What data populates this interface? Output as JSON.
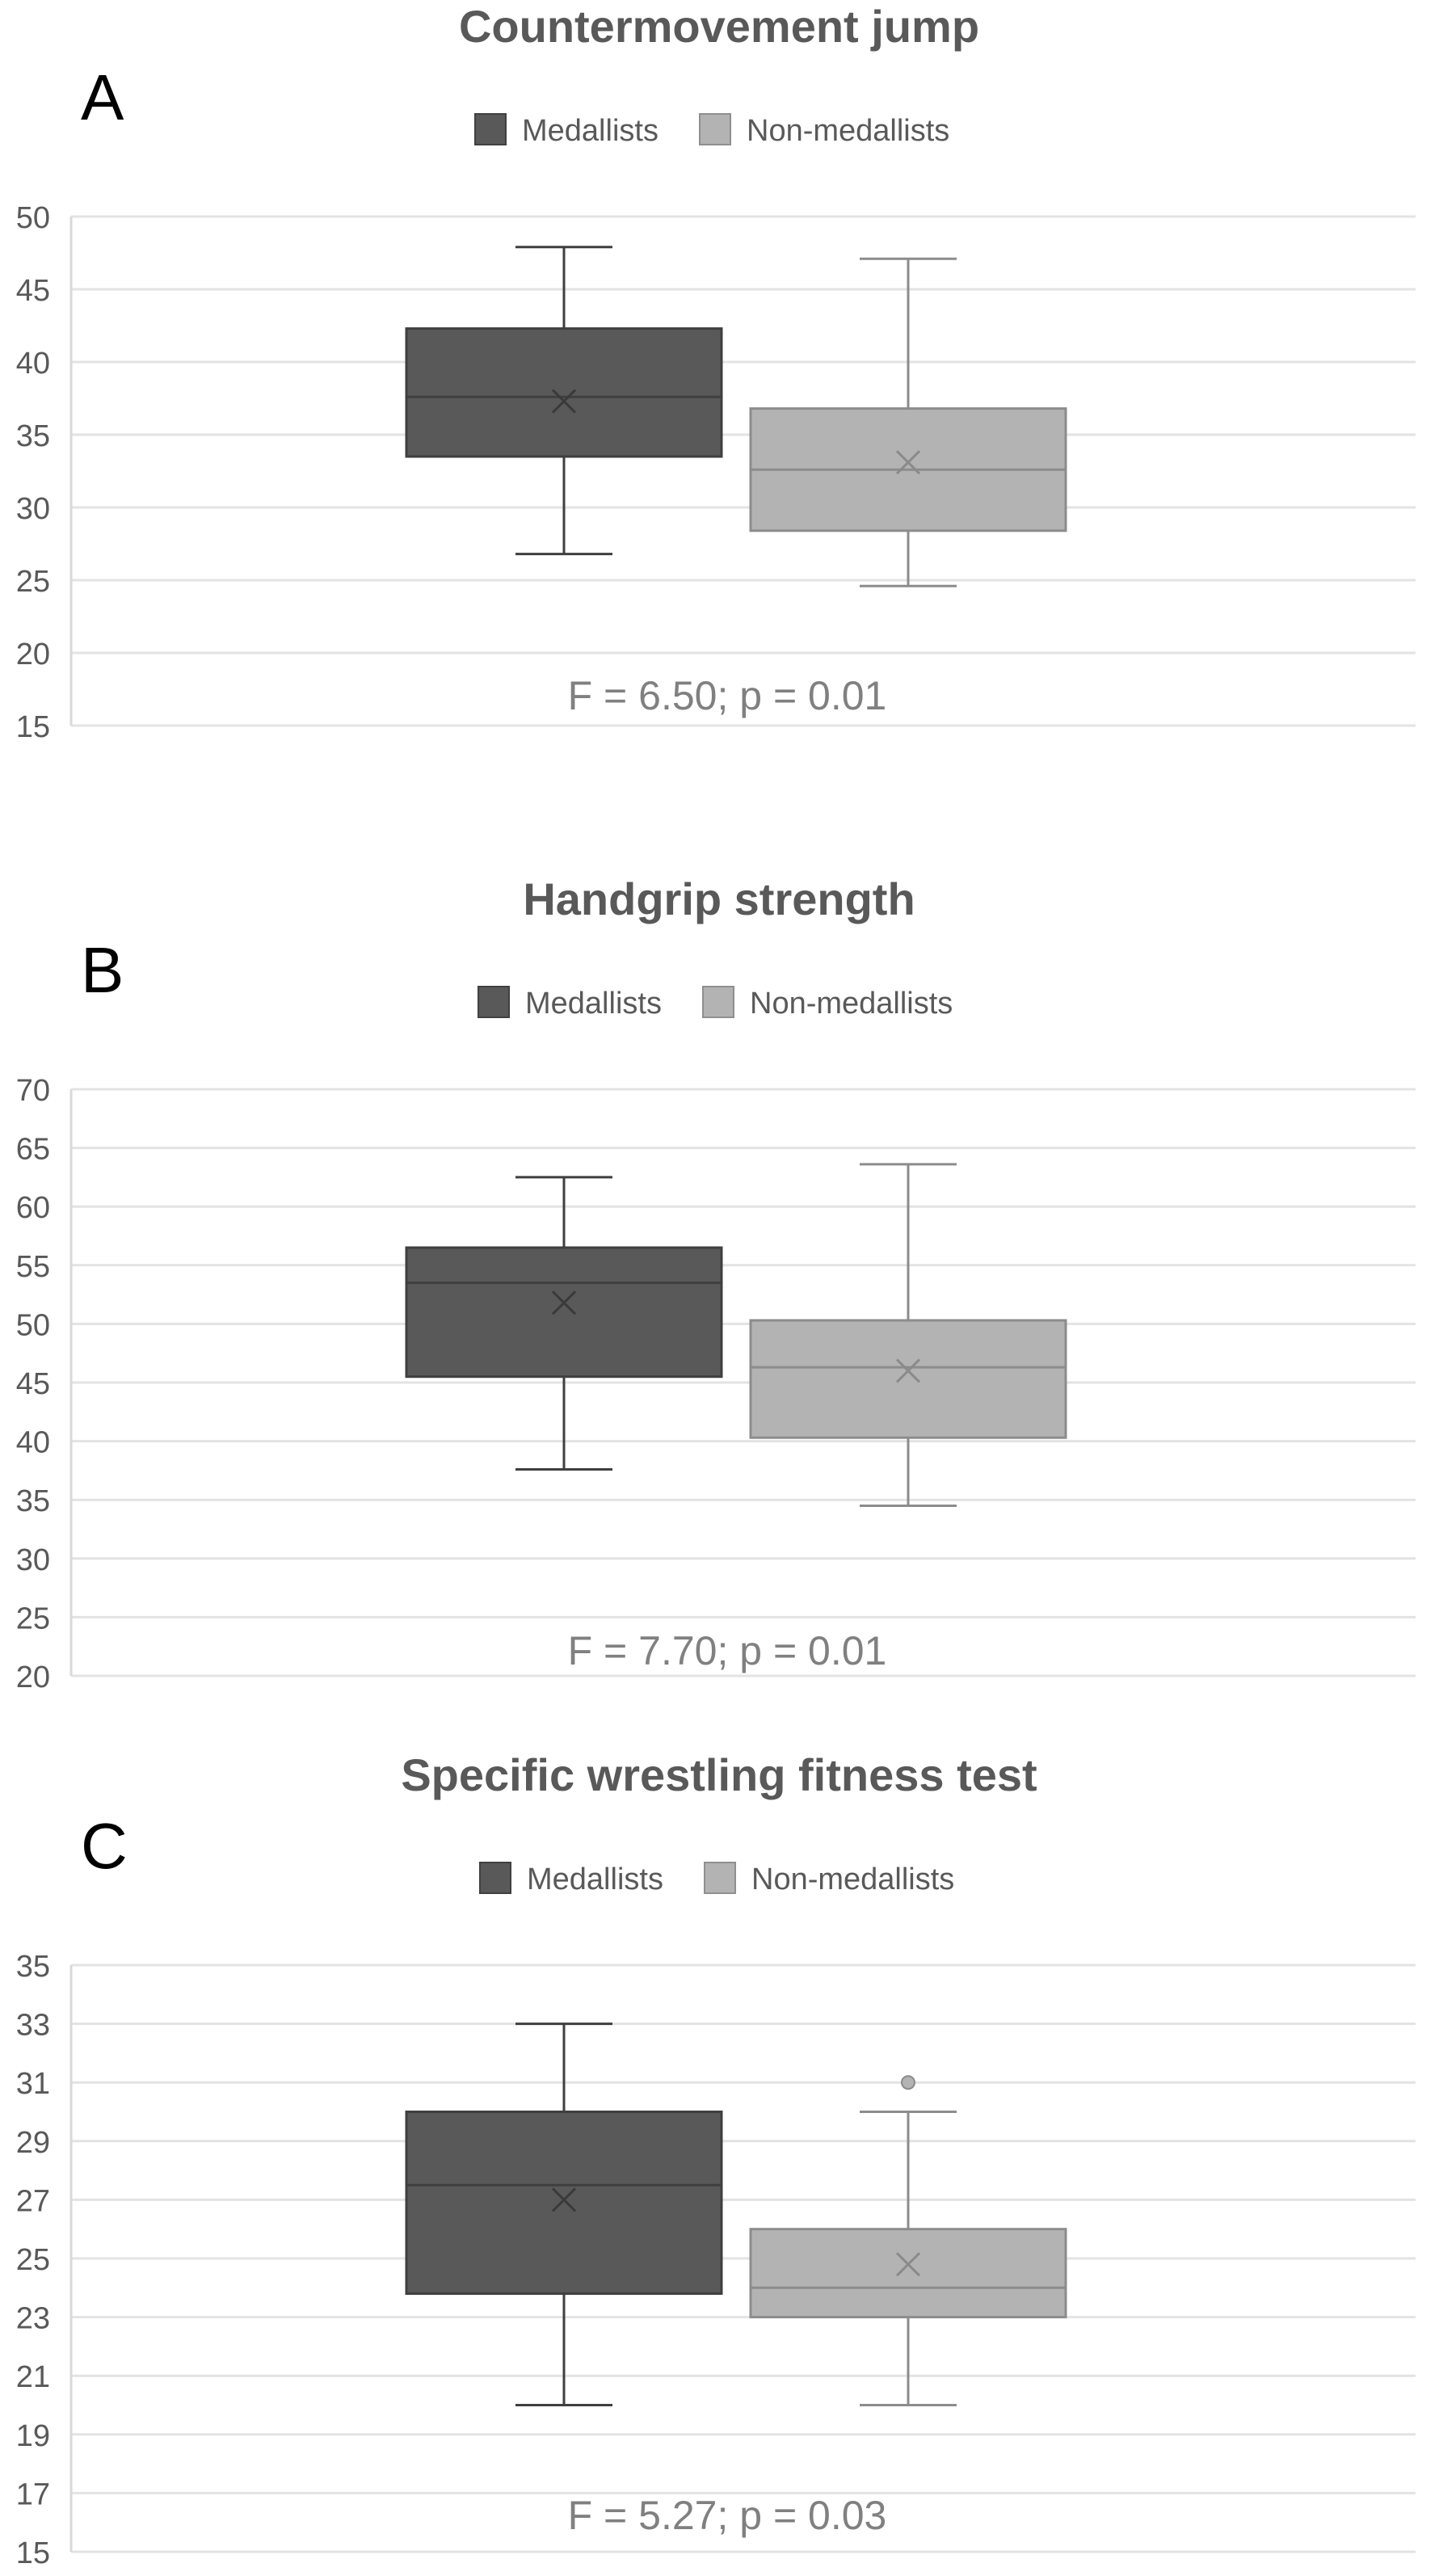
{
  "chart_data": [
    {
      "type": "box",
      "panel_label": "A",
      "title": "Countermovement jump",
      "legend": [
        "Medallists",
        "Non-medallists"
      ],
      "ylim": [
        15,
        50
      ],
      "yticks": [
        15,
        20,
        25,
        30,
        35,
        40,
        45,
        50
      ],
      "series": [
        {
          "name": "Medallists",
          "color": "#595959",
          "min": 26.8,
          "q1": 33.5,
          "median": 37.6,
          "q3": 42.3,
          "max": 47.9,
          "mean": 37.3,
          "outliers": []
        },
        {
          "name": "Non-medallists",
          "color": "#b3b3b3",
          "min": 24.6,
          "q1": 28.4,
          "median": 32.6,
          "q3": 36.8,
          "max": 47.1,
          "mean": 33.1,
          "outliers": []
        }
      ],
      "annotation": "F = 6.50; p = 0.01"
    },
    {
      "type": "box",
      "panel_label": "B",
      "title": "Handgrip strength",
      "legend": [
        "Medallists",
        "Non-medallists"
      ],
      "ylim": [
        20,
        70
      ],
      "yticks": [
        20,
        25,
        30,
        35,
        40,
        45,
        50,
        55,
        60,
        65,
        70
      ],
      "series": [
        {
          "name": "Medallists",
          "color": "#595959",
          "min": 37.6,
          "q1": 45.5,
          "median": 53.5,
          "q3": 56.5,
          "max": 62.5,
          "mean": 51.8,
          "outliers": []
        },
        {
          "name": "Non-medallists",
          "color": "#b3b3b3",
          "min": 34.5,
          "q1": 40.3,
          "median": 46.3,
          "q3": 50.3,
          "max": 63.6,
          "mean": 46.0,
          "outliers": []
        }
      ],
      "annotation": "F = 7.70; p = 0.01"
    },
    {
      "type": "box",
      "panel_label": "C",
      "title": "Specific wrestling fitness test",
      "legend": [
        "Medallists",
        "Non-medallists"
      ],
      "ylim": [
        15,
        35
      ],
      "yticks": [
        15,
        17,
        19,
        21,
        23,
        25,
        27,
        29,
        31,
        33,
        35
      ],
      "series": [
        {
          "name": "Medallists",
          "color": "#595959",
          "min": 20,
          "q1": 23.8,
          "median": 27.5,
          "q3": 30,
          "max": 33,
          "mean": 27,
          "outliers": []
        },
        {
          "name": "Non-medallists",
          "color": "#b3b3b3",
          "min": 20,
          "q1": 23,
          "median": 24,
          "q3": 26,
          "max": 30,
          "mean": 24.8,
          "outliers": [
            31
          ]
        }
      ],
      "annotation": "F = 5.27; p = 0.03"
    }
  ]
}
